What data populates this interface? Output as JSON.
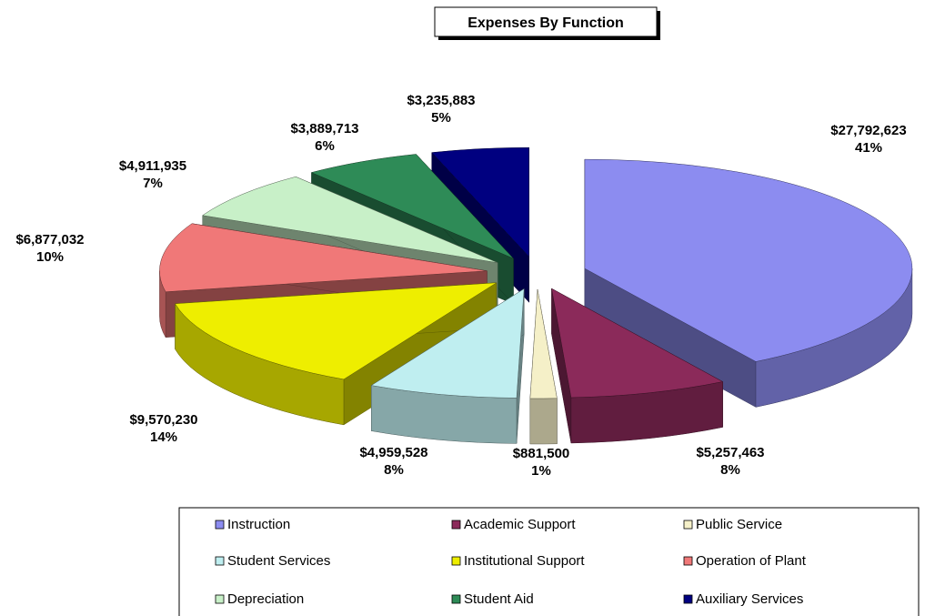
{
  "chart_data": {
    "type": "pie3d",
    "title": "Expenses By Function",
    "categories": [
      "Instruction",
      "Academic Support",
      "Public Service",
      "Student Services",
      "Institutional Support",
      "Operation of Plant",
      "Depreciation",
      "Student Aid",
      "Auxiliary Services"
    ],
    "values": [
      27792623,
      5257463,
      881500,
      4959528,
      9570230,
      6877032,
      4911935,
      3889713,
      3235883
    ],
    "value_labels": [
      "$27,792,623",
      "$5,257,463",
      "$881,500",
      "$4,959,528",
      "$9,570,230",
      "$6,877,032",
      "$4,911,935",
      "$3,889,713",
      "$3,235,883"
    ],
    "percent_labels": [
      "41%",
      "8%",
      "1%",
      "8%",
      "14%",
      "10%",
      "7%",
      "6%",
      "5%"
    ],
    "colors": [
      "#8c8cf0",
      "#8b2a5a",
      "#f5f0c8",
      "#bfeef0",
      "#eeee00",
      "#f07878",
      "#c8f0c8",
      "#2e8b57",
      "#000080"
    ],
    "legend": "bottom"
  }
}
